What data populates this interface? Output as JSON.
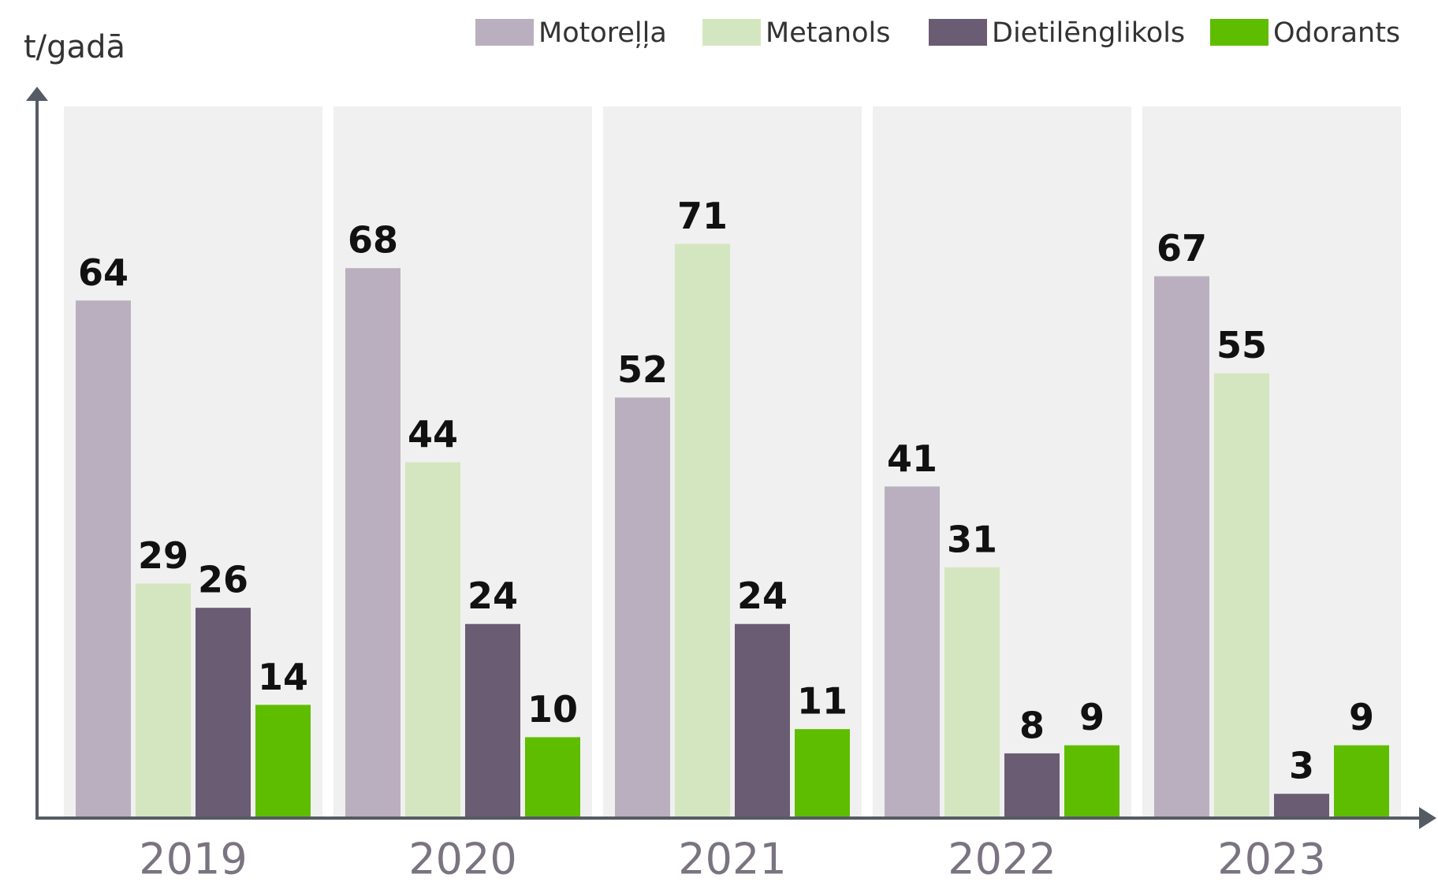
{
  "chart_data": {
    "type": "bar",
    "y_label": "t/gadā",
    "categories": [
      "2019",
      "2020",
      "2021",
      "2022",
      "2023"
    ],
    "series": [
      {
        "name": "Motoreļļa",
        "color": "#baafbf",
        "values": [
          64,
          68,
          52,
          41,
          67
        ]
      },
      {
        "name": "Metanols",
        "color": "#d4e6bf",
        "values": [
          29,
          44,
          71,
          31,
          55
        ]
      },
      {
        "name": "Dietilēnglikols",
        "color": "#6a5c72",
        "values": [
          26,
          24,
          24,
          8,
          3
        ]
      },
      {
        "name": "Odorants",
        "color": "#5fbd00",
        "values": [
          14,
          10,
          11,
          9,
          9
        ]
      }
    ],
    "ylim": [
      0,
      88
    ],
    "legend": "top-right"
  }
}
